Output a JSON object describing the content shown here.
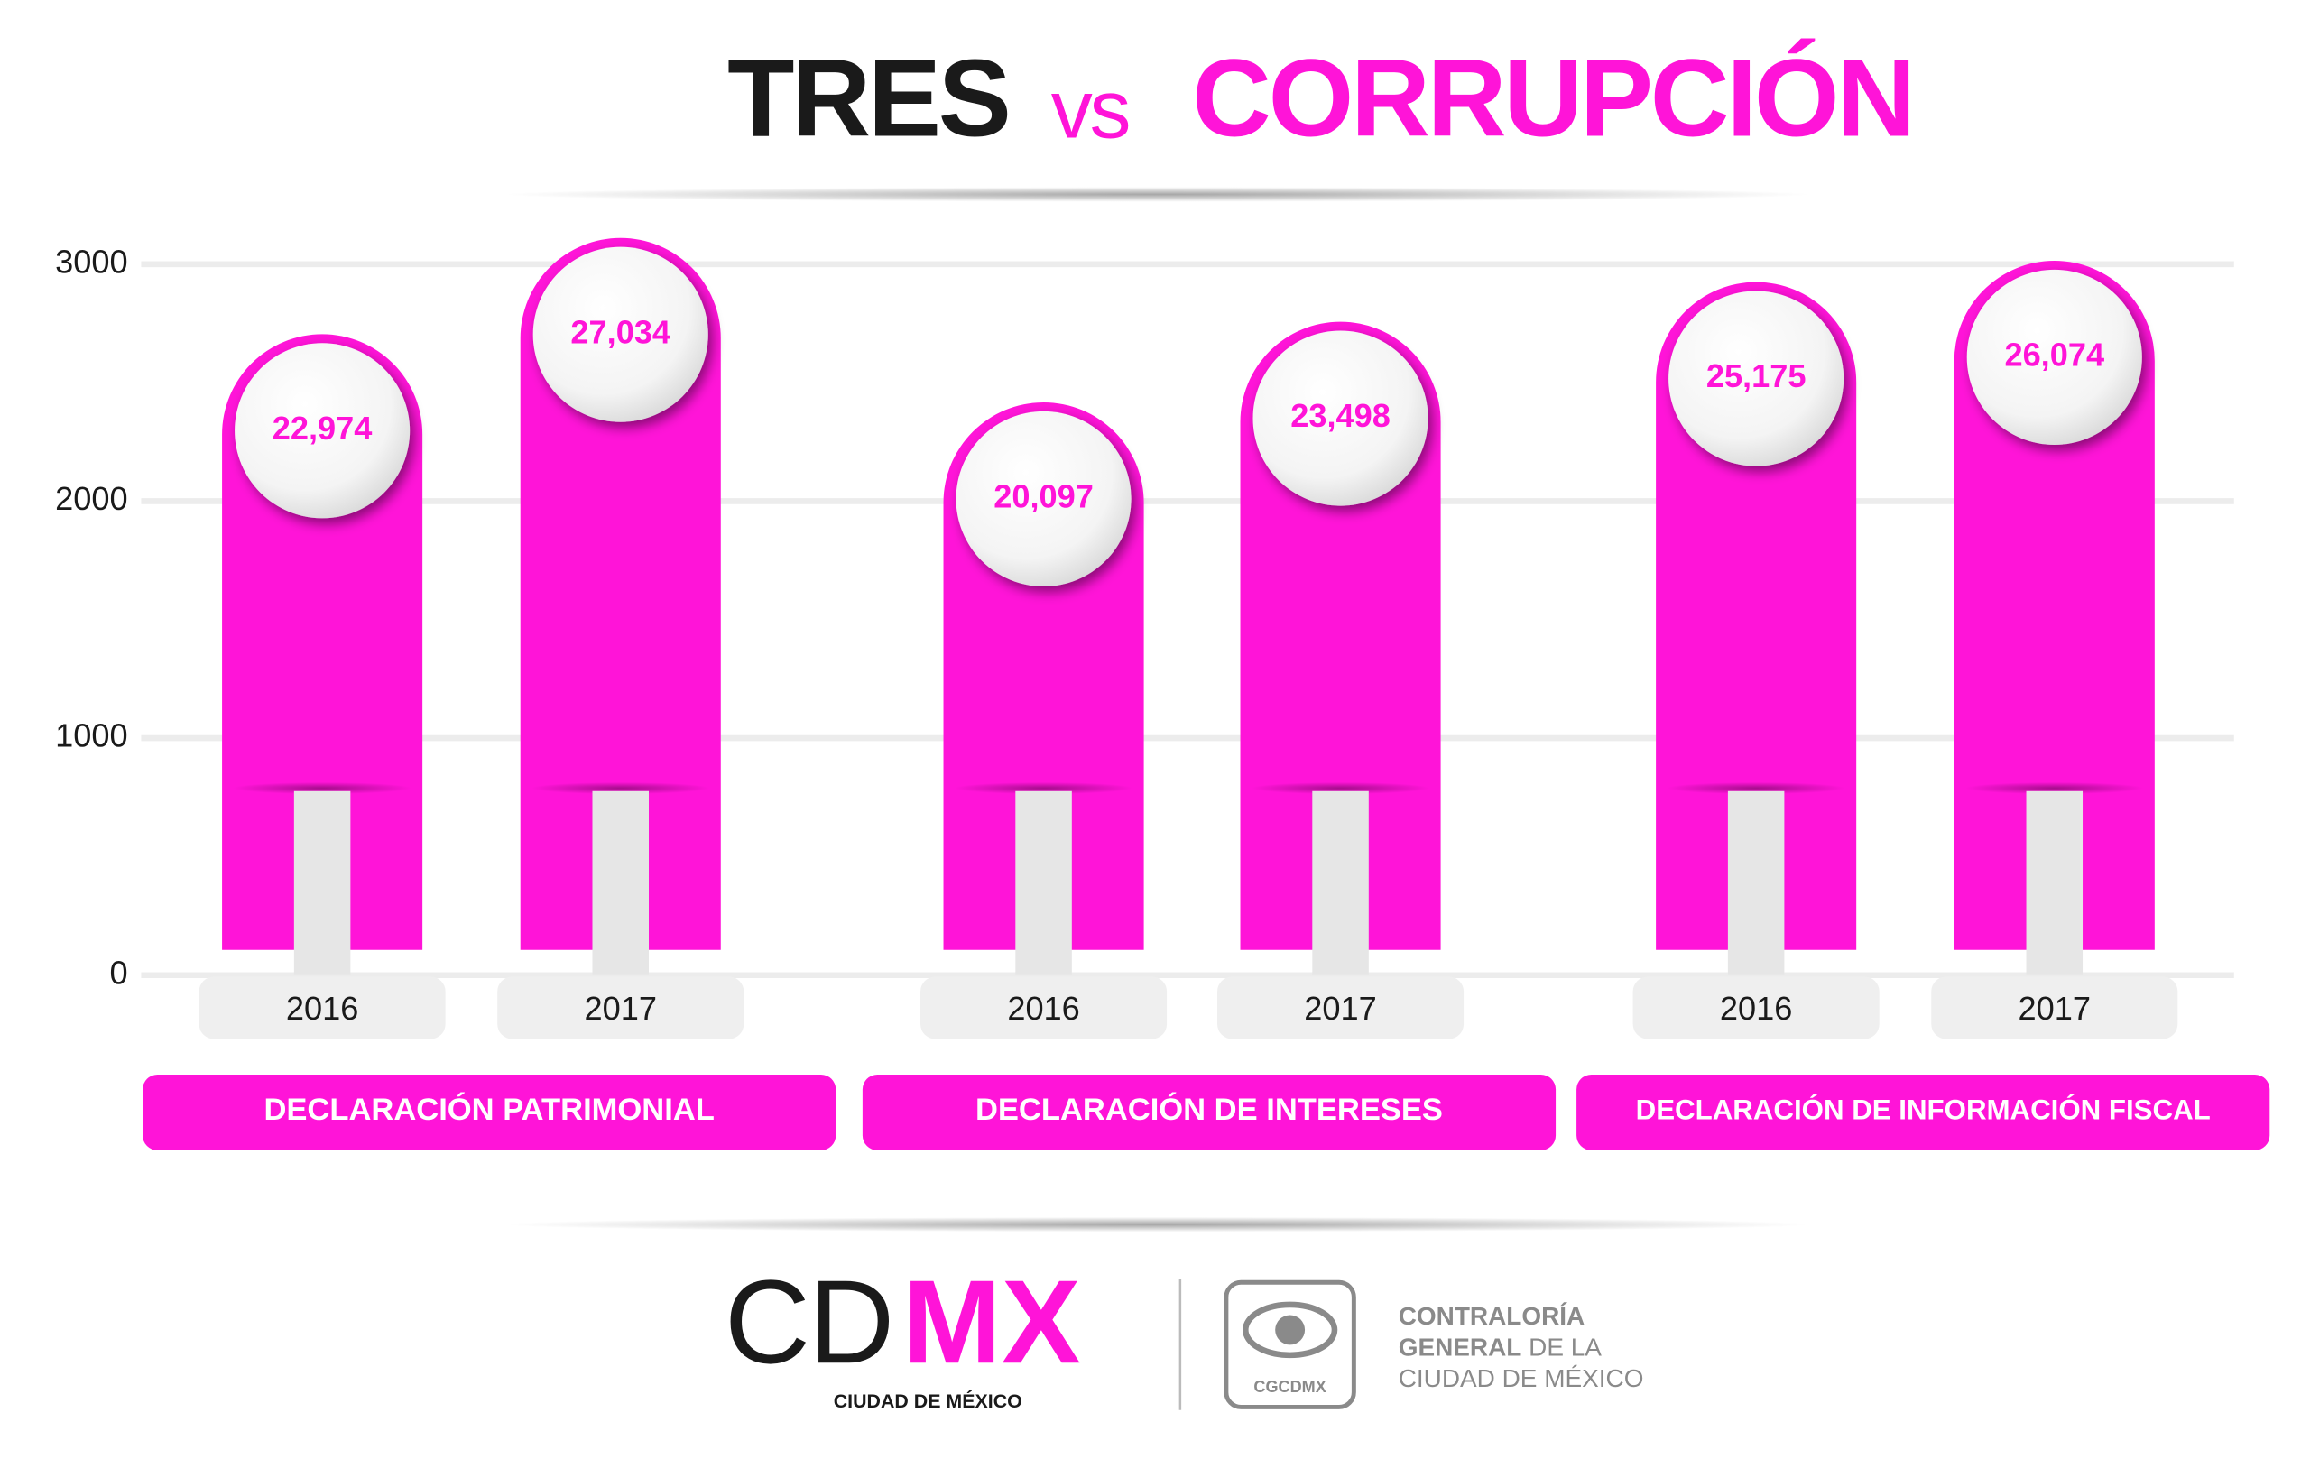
{
  "chart_data": {
    "type": "bar",
    "title": {
      "left": "TRES",
      "middle": "vs",
      "right": "CORRUPCIÓN"
    },
    "groups": [
      "DECLARACIÓN PATRIMONIAL",
      "DECLARACIÓN DE INTERESES",
      "DECLARACIÓN DE INFORMACIÓN FISCAL"
    ],
    "categories": [
      "2016",
      "2017",
      "2016",
      "2017",
      "2016",
      "2017"
    ],
    "values": [
      22974,
      27034,
      20097,
      23498,
      25175,
      26074
    ],
    "value_labels": [
      "22,974",
      "27,034",
      "20,097",
      "23,498",
      "25,175",
      "26,074"
    ],
    "axis": "y2",
    "color": "#ff14d8",
    "ylim": [
      0,
      3000
    ],
    "yticks": [
      0,
      1000,
      2000,
      3000
    ],
    "y2lim": [
      0,
      30000
    ],
    "grid": true
  },
  "footer": {
    "logo": {
      "left": "CD",
      "right": "MX",
      "subtitle": "CIUDAD DE MÉXICO"
    },
    "badge": "CGCDMX",
    "org": {
      "line1": "CONTRALORÍA",
      "line2_bold": "GENERAL",
      "line2_rest": "DE LA",
      "line3": "CIUDAD DE MÉXICO"
    }
  }
}
